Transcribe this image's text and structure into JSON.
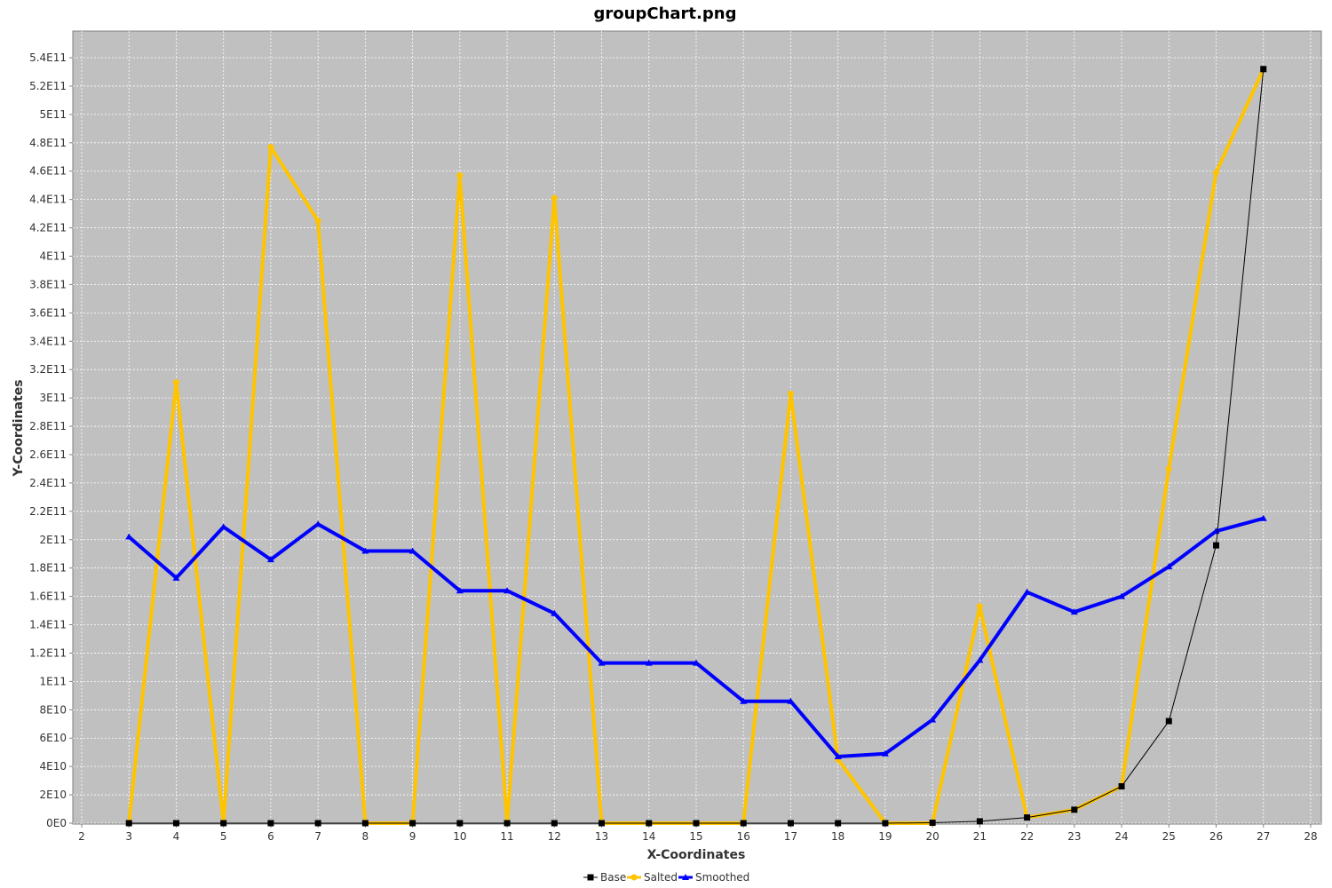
{
  "chart_data": {
    "type": "line",
    "title": "groupChart.png",
    "xlabel": "X-Coordinates",
    "ylabel": "Y-Coordinates",
    "xlim": [
      2,
      28
    ],
    "ylim": [
      0,
      550000000000
    ],
    "x_ticks": [
      "2",
      "3",
      "4",
      "5",
      "6",
      "7",
      "8",
      "9",
      "10",
      "11",
      "12",
      "13",
      "14",
      "15",
      "16",
      "17",
      "18",
      "19",
      "20",
      "21",
      "22",
      "23",
      "24",
      "25",
      "26",
      "27",
      "28"
    ],
    "y_ticks": [
      "0E0",
      "2E10",
      "4E10",
      "6E10",
      "8E10",
      "1E11",
      "1.2E11",
      "1.4E11",
      "1.6E11",
      "1.8E11",
      "2E11",
      "2.2E11",
      "2.4E11",
      "2.6E11",
      "2.8E11",
      "3E11",
      "3.2E11",
      "3.4E11",
      "3.6E11",
      "3.8E11",
      "4E11",
      "4.2E11",
      "4.4E11",
      "4.6E11",
      "4.8E11",
      "5E11",
      "5.2E11",
      "5.4E11"
    ],
    "x": [
      3,
      4,
      5,
      6,
      7,
      8,
      9,
      10,
      11,
      12,
      13,
      14,
      15,
      16,
      17,
      18,
      19,
      20,
      21,
      22,
      23,
      24,
      25,
      26,
      27
    ],
    "grid": true,
    "legend_position": "bottom",
    "series": [
      {
        "name": "Base",
        "color": "#000000",
        "marker": "square",
        "values": [
          0,
          0,
          0,
          0,
          0,
          0,
          0,
          0,
          0,
          0,
          0,
          0,
          0,
          0,
          0,
          0,
          0,
          300000000,
          1300000000,
          4000000000,
          9500000000,
          26000000000,
          72000000000,
          196000000000,
          532000000000
        ]
      },
      {
        "name": "Salted",
        "color": "#ffc400",
        "marker": "circle",
        "values": [
          0,
          311000000000,
          0,
          477000000000,
          425000000000,
          0,
          0,
          457000000000,
          0,
          441000000000,
          0,
          0,
          0,
          0,
          303000000000,
          45000000000,
          0,
          0,
          153000000000,
          4000000000,
          9500000000,
          26000000000,
          250000000000,
          459000000000,
          532000000000
        ]
      },
      {
        "name": "Smoothed",
        "color": "#0000ff",
        "marker": "triangle",
        "values": [
          202000000000,
          173000000000,
          209000000000,
          186000000000,
          211000000000,
          192000000000,
          192000000000,
          164000000000,
          164000000000,
          148000000000,
          113000000000,
          113000000000,
          113000000000,
          86000000000,
          86000000000,
          47000000000,
          49000000000,
          73000000000,
          115000000000,
          163000000000,
          149000000000,
          160000000000,
          181000000000,
          206000000000,
          215000000000
        ]
      }
    ]
  }
}
